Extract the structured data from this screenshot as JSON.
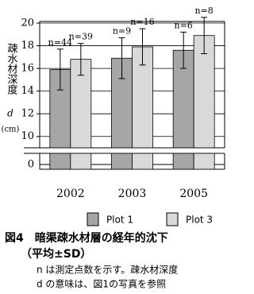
{
  "chart_data": {
    "type": "bar",
    "y_label": "疎水材深度",
    "y_label_symbol": "d",
    "y_unit": "(cm)",
    "categories": [
      "2002",
      "2003",
      "2005"
    ],
    "series": [
      {
        "name": "Plot 1",
        "color": "#a6a6a6",
        "values": [
          15.9,
          16.9,
          17.6
        ],
        "errors": [
          1.8,
          1.8,
          1.6
        ],
        "value_labels": [
          "n=44",
          "n=9",
          "n=6"
        ]
      },
      {
        "name": "Plot 3",
        "color": "#d9d9d9",
        "values": [
          16.8,
          17.9,
          18.9
        ],
        "errors": [
          1.4,
          1.6,
          1.6
        ],
        "value_labels": [
          "n=39",
          "n=16",
          "n=8"
        ]
      }
    ],
    "ylim": [
      9,
      20
    ],
    "yticks": [
      10,
      12,
      14,
      16,
      18,
      20
    ],
    "lower_yticks": [
      0
    ],
    "caption": {
      "title": "図4　暗渠疎水材層の経年的沈下",
      "subtitle": "（平均±SD）",
      "notes": [
        "n は測定点数を示す。疎水材深度",
        "d の意味は、図1の写真を参照"
      ]
    }
  }
}
